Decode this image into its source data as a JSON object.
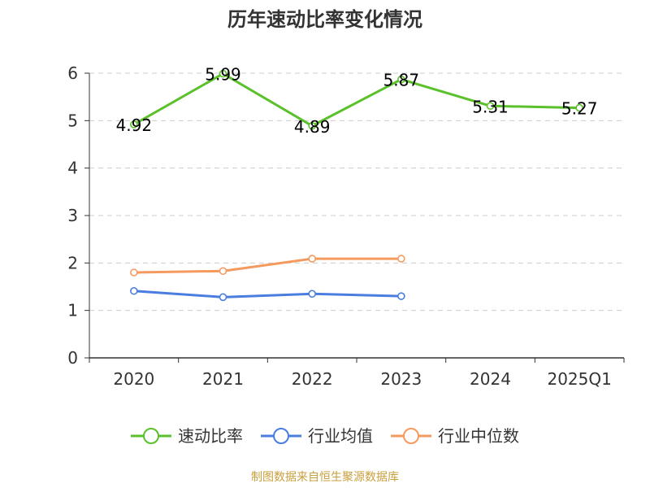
{
  "chart_data": {
    "type": "line",
    "title": "历年速动比率变化情况",
    "categories": [
      "2020",
      "2021",
      "2022",
      "2023",
      "2024",
      "2025Q1"
    ],
    "ylim": [
      0,
      6
    ],
    "yticks": [
      "0",
      "1",
      "2",
      "3",
      "4",
      "5",
      "6"
    ],
    "grid": true,
    "legend_position": "bottom",
    "series": [
      {
        "name": "速动比率",
        "color": "#5bc12a",
        "values": [
          4.92,
          5.99,
          4.89,
          5.87,
          5.31,
          5.27
        ],
        "labels": [
          "4.92",
          "5.99",
          "4.89",
          "5.87",
          "5.31",
          "5.27"
        ],
        "show_labels": true
      },
      {
        "name": "行业均值",
        "color": "#4a7de0",
        "values": [
          1.41,
          1.28,
          1.35,
          1.3,
          null,
          null
        ],
        "show_labels": false
      },
      {
        "name": "行业中位数",
        "color": "#f59a5e",
        "values": [
          1.8,
          1.83,
          2.09,
          2.09,
          null,
          null
        ],
        "show_labels": false
      }
    ],
    "source": "制图数据来自恒生聚源数据库"
  }
}
